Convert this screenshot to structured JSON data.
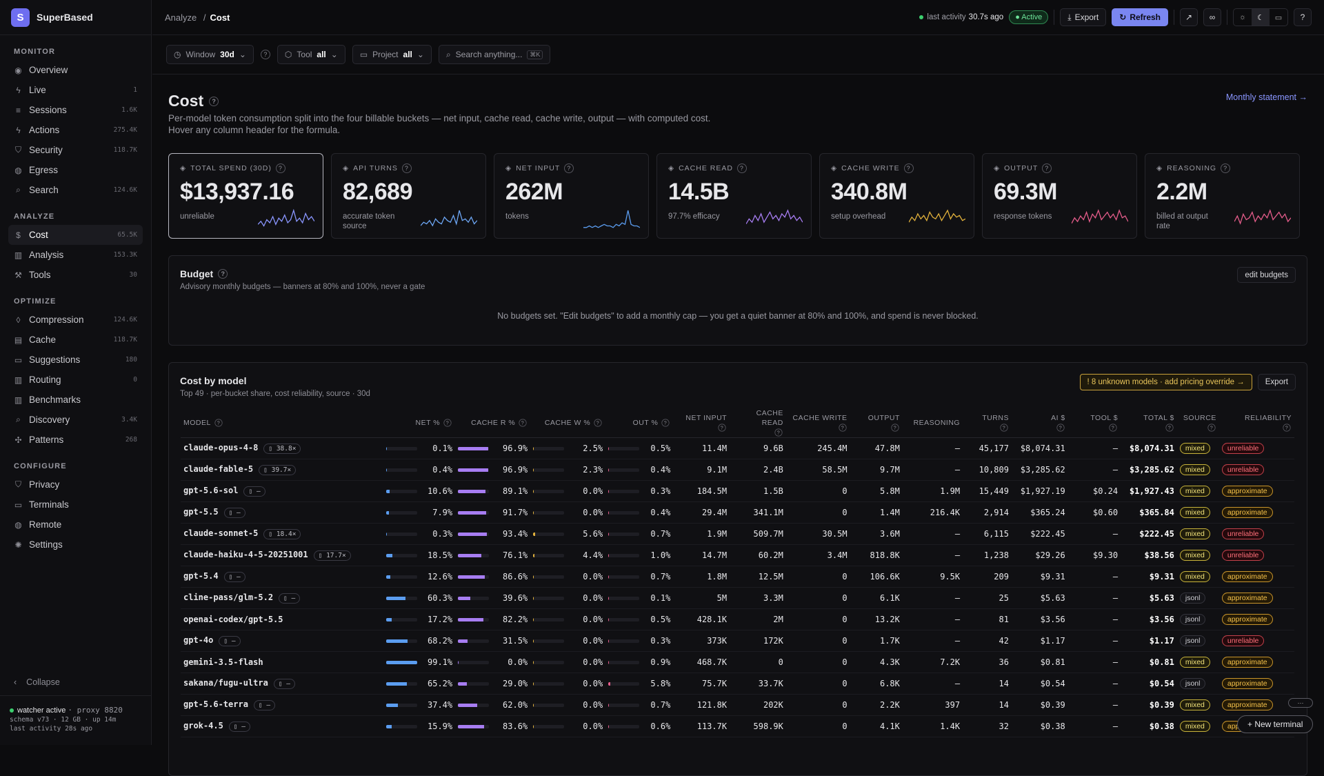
{
  "app": {
    "logo": "S",
    "name": "SuperBased"
  },
  "sidebar": {
    "sections": [
      {
        "title": "MONITOR",
        "items": [
          {
            "label": "Overview",
            "icon": "eye-icon",
            "glyph": "◉",
            "count": ""
          },
          {
            "label": "Live",
            "icon": "bolt-icon",
            "glyph": "ϟ",
            "count": "1"
          },
          {
            "label": "Sessions",
            "icon": "list-icon",
            "glyph": "≡",
            "count": "1.6K"
          },
          {
            "label": "Actions",
            "icon": "bolt-icon",
            "glyph": "ϟ",
            "count": "275.4K"
          },
          {
            "label": "Security",
            "icon": "shield-icon",
            "glyph": "⛉",
            "count": "118.7K"
          },
          {
            "label": "Egress",
            "icon": "globe-icon",
            "glyph": "◍",
            "count": ""
          },
          {
            "label": "Search",
            "icon": "search-icon",
            "glyph": "⌕",
            "count": "124.6K"
          }
        ]
      },
      {
        "title": "ANALYZE",
        "items": [
          {
            "label": "Cost",
            "icon": "dollar-icon",
            "glyph": "$",
            "count": "65.5K",
            "active": true
          },
          {
            "label": "Analysis",
            "icon": "bar-chart-icon",
            "glyph": "▥",
            "count": "153.3K"
          },
          {
            "label": "Tools",
            "icon": "wrench-icon",
            "glyph": "⚒",
            "count": "30"
          }
        ]
      },
      {
        "title": "OPTIMIZE",
        "items": [
          {
            "label": "Compression",
            "icon": "drop-icon",
            "glyph": "◊",
            "count": "124.6K"
          },
          {
            "label": "Cache",
            "icon": "database-icon",
            "glyph": "▤",
            "count": "118.7K"
          },
          {
            "label": "Suggestions",
            "icon": "chat-icon",
            "glyph": "▭",
            "count": "180"
          },
          {
            "label": "Routing",
            "icon": "bar-chart-icon",
            "glyph": "▥",
            "count": "0"
          },
          {
            "label": "Benchmarks",
            "icon": "bar-chart-icon",
            "glyph": "▥",
            "count": ""
          },
          {
            "label": "Discovery",
            "icon": "search-icon",
            "glyph": "⌕",
            "count": "3.4K"
          },
          {
            "label": "Patterns",
            "icon": "sparkle-icon",
            "glyph": "✣",
            "count": "268"
          }
        ]
      },
      {
        "title": "CONFIGURE",
        "items": [
          {
            "label": "Privacy",
            "icon": "shield-icon",
            "glyph": "⛉",
            "count": ""
          },
          {
            "label": "Terminals",
            "icon": "terminal-icon",
            "glyph": "▭",
            "count": ""
          },
          {
            "label": "Remote",
            "icon": "globe-icon",
            "glyph": "◍",
            "count": ""
          },
          {
            "label": "Settings",
            "icon": "gear-icon",
            "glyph": "✺",
            "count": ""
          }
        ]
      }
    ],
    "collapse": "Collapse",
    "footer": {
      "status": "watcher active",
      "proxy": "· proxy 8820",
      "line2": "schema v73 · 12 GB · up 14m",
      "line3": "last activity 28s ago"
    }
  },
  "topbar": {
    "crumb_parent": "Analyze",
    "crumb_sep": "/",
    "crumb_current": "Cost",
    "activity_label": "last activity",
    "activity_value": "30.7s ago",
    "status": "Active",
    "export": "Export",
    "refresh": "Refresh",
    "help": "?"
  },
  "filters": {
    "window_label": "Window",
    "window_value": "30d",
    "tool_label": "Tool",
    "tool_value": "all",
    "project_label": "Project",
    "project_value": "all",
    "search_placeholder": "Search anything...",
    "search_kbd": "⌘K"
  },
  "page": {
    "title": "Cost",
    "description": "Per-model token consumption split into the four billable buckets — net input, cache read, cache write, output — with computed cost. Hover any column header for the formula.",
    "statement_link": "Monthly statement →"
  },
  "kpis": [
    {
      "label": "TOTAL SPEND (30D)",
      "value": "$13,937.16",
      "sub": "unreliable",
      "color": "#8a96ff",
      "spark": [
        3,
        5,
        2,
        6,
        4,
        8,
        3,
        7,
        5,
        9,
        4,
        6,
        12,
        5,
        7,
        4,
        10,
        6,
        8,
        5
      ]
    },
    {
      "label": "API TURNS",
      "value": "82,689",
      "sub": "accurate token source",
      "color": "#6ea8f7",
      "spark": [
        2,
        4,
        3,
        5,
        2,
        6,
        4,
        3,
        7,
        5,
        4,
        8,
        3,
        11,
        5,
        6,
        4,
        7,
        3,
        5
      ]
    },
    {
      "label": "NET INPUT",
      "value": "262M",
      "sub": "tokens",
      "color": "#5b9df0",
      "spark": [
        1,
        1,
        2,
        1,
        2,
        1,
        2,
        3,
        2,
        2,
        1,
        3,
        2,
        4,
        3,
        12,
        3,
        2,
        2,
        1
      ]
    },
    {
      "label": "CACHE READ",
      "value": "14.5B",
      "sub": "97.7% efficacy",
      "color": "#a77df2",
      "spark": [
        3,
        6,
        4,
        8,
        5,
        9,
        4,
        7,
        10,
        6,
        8,
        5,
        9,
        7,
        11,
        6,
        8,
        5,
        7,
        4
      ]
    },
    {
      "label": "CACHE WRITE",
      "value": "340.8M",
      "sub": "setup overhead",
      "color": "#e3b23c",
      "spark": [
        4,
        7,
        5,
        9,
        6,
        8,
        5,
        10,
        7,
        6,
        9,
        5,
        8,
        11,
        6,
        9,
        7,
        8,
        5,
        6
      ]
    },
    {
      "label": "OUTPUT",
      "value": "69.3M",
      "sub": "response tokens",
      "color": "#e45c8a",
      "spark": [
        3,
        6,
        4,
        7,
        5,
        9,
        4,
        8,
        6,
        10,
        5,
        7,
        9,
        6,
        8,
        5,
        10,
        6,
        7,
        4
      ]
    },
    {
      "label": "REASONING",
      "value": "2.2M",
      "sub": "billed at output rate",
      "color": "#e45c8a",
      "spark": [
        4,
        7,
        3,
        8,
        5,
        6,
        9,
        4,
        7,
        5,
        8,
        6,
        10,
        5,
        7,
        9,
        6,
        8,
        4,
        6
      ]
    }
  ],
  "budget": {
    "title": "Budget",
    "subtitle": "Advisory monthly budgets — banners at 80% and 100%, never a gate",
    "edit": "edit budgets",
    "empty": "No budgets set. \"Edit budgets\" to add a monthly cap — you get a quiet banner at 80% and 100%, and spend is never blocked."
  },
  "costtable": {
    "title": "Cost by model",
    "subtitle": "Top 49 · per-bucket share, cost reliability, source · 30d",
    "warning": "! 8 unknown models · add pricing override →",
    "export": "Export",
    "columns": [
      "MODEL",
      "NET %",
      "CACHE R %",
      "CACHE W %",
      "OUT %",
      "NET INPUT",
      "CACHE READ",
      "CACHE WRITE",
      "OUTPUT",
      "REASONING",
      "TURNS",
      "AI $",
      "TOOL $",
      "TOTAL $",
      "SOURCE",
      "RELIABILITY"
    ],
    "rows": [
      {
        "model": "claude-opus-4-8",
        "mult": "38.8×",
        "net": "0.1%",
        "cr": "96.9%",
        "cw": "2.5%",
        "out": "0.5%",
        "netin": "11.4M",
        "cread": "9.6B",
        "cwrite": "245.4M",
        "output": "47.8M",
        "reason": "—",
        "turns": "45,177",
        "ai": "$8,074.31",
        "tool": "—",
        "total": "$8,074.31",
        "source": "mixed",
        "rel": "unreliable",
        "netp": 0.1,
        "crp": 96.9,
        "cwp": 2.5,
        "outp": 0.5
      },
      {
        "model": "claude-fable-5",
        "mult": "39.7×",
        "net": "0.4%",
        "cr": "96.9%",
        "cw": "2.3%",
        "out": "0.4%",
        "netin": "9.1M",
        "cread": "2.4B",
        "cwrite": "58.5M",
        "output": "9.7M",
        "reason": "—",
        "turns": "10,809",
        "ai": "$3,285.62",
        "tool": "—",
        "total": "$3,285.62",
        "source": "mixed",
        "rel": "unreliable",
        "netp": 0.4,
        "crp": 96.9,
        "cwp": 2.3,
        "outp": 0.4
      },
      {
        "model": "gpt-5.6-sol",
        "mult": "—",
        "net": "10.6%",
        "cr": "89.1%",
        "cw": "0.0%",
        "out": "0.3%",
        "netin": "184.5M",
        "cread": "1.5B",
        "cwrite": "0",
        "output": "5.8M",
        "reason": "1.9M",
        "turns": "15,449",
        "ai": "$1,927.19",
        "tool": "$0.24",
        "total": "$1,927.43",
        "source": "mixed",
        "rel": "approximate",
        "netp": 10.6,
        "crp": 89.1,
        "cwp": 0,
        "outp": 0.3
      },
      {
        "model": "gpt-5.5",
        "mult": "—",
        "net": "7.9%",
        "cr": "91.7%",
        "cw": "0.0%",
        "out": "0.4%",
        "netin": "29.4M",
        "cread": "341.1M",
        "cwrite": "0",
        "output": "1.4M",
        "reason": "216.4K",
        "turns": "2,914",
        "ai": "$365.24",
        "tool": "$0.60",
        "total": "$365.84",
        "source": "mixed",
        "rel": "approximate",
        "netp": 7.9,
        "crp": 91.7,
        "cwp": 0,
        "outp": 0.4
      },
      {
        "model": "claude-sonnet-5",
        "mult": "18.4×",
        "net": "0.3%",
        "cr": "93.4%",
        "cw": "5.6%",
        "out": "0.7%",
        "netin": "1.9M",
        "cread": "509.7M",
        "cwrite": "30.5M",
        "output": "3.6M",
        "reason": "—",
        "turns": "6,115",
        "ai": "$222.45",
        "tool": "—",
        "total": "$222.45",
        "source": "mixed",
        "rel": "unreliable",
        "netp": 0.3,
        "crp": 93.4,
        "cwp": 5.6,
        "outp": 0.7
      },
      {
        "model": "claude-haiku-4-5-20251001",
        "mult": "17.7×",
        "net": "18.5%",
        "cr": "76.1%",
        "cw": "4.4%",
        "out": "1.0%",
        "netin": "14.7M",
        "cread": "60.2M",
        "cwrite": "3.4M",
        "output": "818.8K",
        "reason": "—",
        "turns": "1,238",
        "ai": "$29.26",
        "tool": "$9.30",
        "total": "$38.56",
        "source": "mixed",
        "rel": "unreliable",
        "netp": 18.5,
        "crp": 76.1,
        "cwp": 4.4,
        "outp": 1.0
      },
      {
        "model": "gpt-5.4",
        "mult": "—",
        "net": "12.6%",
        "cr": "86.6%",
        "cw": "0.0%",
        "out": "0.7%",
        "netin": "1.8M",
        "cread": "12.5M",
        "cwrite": "0",
        "output": "106.6K",
        "reason": "9.5K",
        "turns": "209",
        "ai": "$9.31",
        "tool": "—",
        "total": "$9.31",
        "source": "mixed",
        "rel": "approximate",
        "netp": 12.6,
        "crp": 86.6,
        "cwp": 0,
        "outp": 0.7
      },
      {
        "model": "cline-pass/glm-5.2",
        "mult": "—",
        "net": "60.3%",
        "cr": "39.6%",
        "cw": "0.0%",
        "out": "0.1%",
        "netin": "5M",
        "cread": "3.3M",
        "cwrite": "0",
        "output": "6.1K",
        "reason": "—",
        "turns": "25",
        "ai": "$5.63",
        "tool": "—",
        "total": "$5.63",
        "source": "jsonl",
        "rel": "approximate",
        "netp": 60.3,
        "crp": 39.6,
        "cwp": 0,
        "outp": 0.1
      },
      {
        "model": "openai-codex/gpt-5.5",
        "mult": "",
        "net": "17.2%",
        "cr": "82.2%",
        "cw": "0.0%",
        "out": "0.5%",
        "netin": "428.1K",
        "cread": "2M",
        "cwrite": "0",
        "output": "13.2K",
        "reason": "—",
        "turns": "81",
        "ai": "$3.56",
        "tool": "—",
        "total": "$3.56",
        "source": "jsonl",
        "rel": "approximate",
        "netp": 17.2,
        "crp": 82.2,
        "cwp": 0,
        "outp": 0.5
      },
      {
        "model": "gpt-4o",
        "mult": "—",
        "net": "68.2%",
        "cr": "31.5%",
        "cw": "0.0%",
        "out": "0.3%",
        "netin": "373K",
        "cread": "172K",
        "cwrite": "0",
        "output": "1.7K",
        "reason": "—",
        "turns": "42",
        "ai": "$1.17",
        "tool": "—",
        "total": "$1.17",
        "source": "jsonl",
        "rel": "unreliable",
        "netp": 68.2,
        "crp": 31.5,
        "cwp": 0,
        "outp": 0.3
      },
      {
        "model": "gemini-3.5-flash",
        "mult": "",
        "net": "99.1%",
        "cr": "0.0%",
        "cw": "0.0%",
        "out": "0.9%",
        "netin": "468.7K",
        "cread": "0",
        "cwrite": "0",
        "output": "4.3K",
        "reason": "7.2K",
        "turns": "36",
        "ai": "$0.81",
        "tool": "—",
        "total": "$0.81",
        "source": "mixed",
        "rel": "approximate",
        "netp": 99.1,
        "crp": 0,
        "cwp": 0,
        "outp": 0.9
      },
      {
        "model": "sakana/fugu-ultra",
        "mult": "—",
        "net": "65.2%",
        "cr": "29.0%",
        "cw": "0.0%",
        "out": "5.8%",
        "netin": "75.7K",
        "cread": "33.7K",
        "cwrite": "0",
        "output": "6.8K",
        "reason": "—",
        "turns": "14",
        "ai": "$0.54",
        "tool": "—",
        "total": "$0.54",
        "source": "jsonl",
        "rel": "approximate",
        "netp": 65.2,
        "crp": 29.0,
        "cwp": 0,
        "outp": 5.8
      },
      {
        "model": "gpt-5.6-terra",
        "mult": "—",
        "net": "37.4%",
        "cr": "62.0%",
        "cw": "0.0%",
        "out": "0.7%",
        "netin": "121.8K",
        "cread": "202K",
        "cwrite": "0",
        "output": "2.2K",
        "reason": "397",
        "turns": "14",
        "ai": "$0.39",
        "tool": "—",
        "total": "$0.39",
        "source": "mixed",
        "rel": "approximate",
        "netp": 37.4,
        "crp": 62.0,
        "cwp": 0,
        "outp": 0.7
      },
      {
        "model": "grok-4.5",
        "mult": "—",
        "net": "15.9%",
        "cr": "83.6%",
        "cw": "0.0%",
        "out": "0.6%",
        "netin": "113.7K",
        "cread": "598.9K",
        "cwrite": "0",
        "output": "4.1K",
        "reason": "1.4K",
        "turns": "32",
        "ai": "$0.38",
        "tool": "—",
        "total": "$0.38",
        "source": "mixed",
        "rel": "approximate",
        "netp": 15.9,
        "crp": 83.6,
        "cwp": 0,
        "outp": 0.6
      }
    ]
  },
  "floating": {
    "new_terminal": "+ New terminal",
    "more": "···"
  }
}
